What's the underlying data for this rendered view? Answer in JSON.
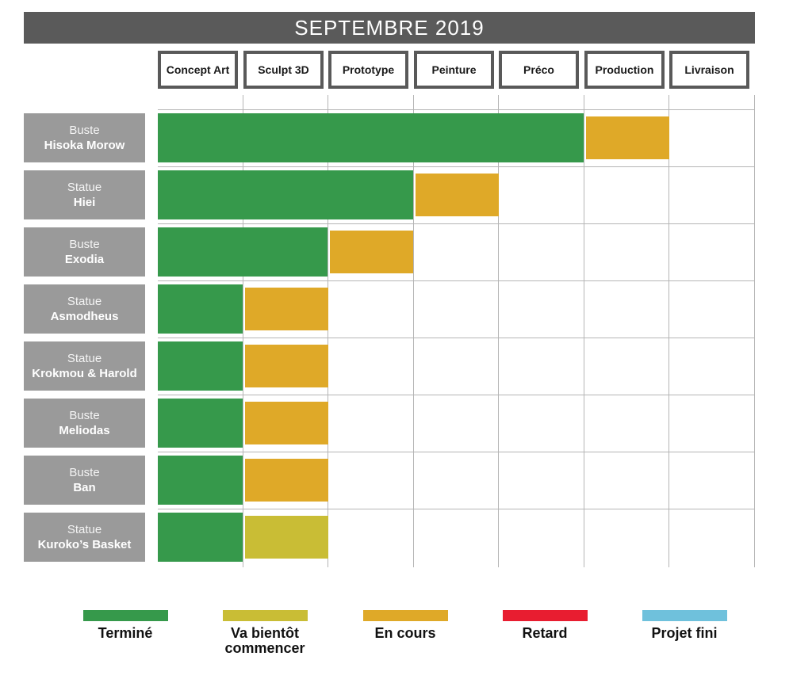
{
  "title": "SEPTEMBRE 2019",
  "columns": [
    "Concept Art",
    "Sculpt 3D",
    "Prototype",
    "Peinture",
    "Préco",
    "Production",
    "Livraison"
  ],
  "colors": {
    "done": "#36994b",
    "soon": "#c9bd35",
    "in_progress": "#dfa928",
    "late": "#e81d30",
    "finished": "#6fc1dc",
    "header_dark": "#595959",
    "label_gray": "#9a9a9a",
    "grid": "#b5b5b5"
  },
  "rows": [
    {
      "line1": "Buste",
      "line2": "Hisoka Morow",
      "segments": [
        {
          "status": "done",
          "start": 0,
          "span": 5
        },
        {
          "status": "in_progress",
          "start": 5,
          "span": 1
        }
      ]
    },
    {
      "line1": "Statue",
      "line2": "Hiei",
      "segments": [
        {
          "status": "done",
          "start": 0,
          "span": 3
        },
        {
          "status": "in_progress",
          "start": 3,
          "span": 1
        }
      ]
    },
    {
      "line1": "Buste",
      "line2": "Exodia",
      "segments": [
        {
          "status": "done",
          "start": 0,
          "span": 2
        },
        {
          "status": "in_progress",
          "start": 2,
          "span": 1
        }
      ]
    },
    {
      "line1": "Statue",
      "line2": "Asmodheus",
      "segments": [
        {
          "status": "done",
          "start": 0,
          "span": 1
        },
        {
          "status": "in_progress",
          "start": 1,
          "span": 1
        }
      ]
    },
    {
      "line1": "Statue",
      "line2": "Krokmou & Harold",
      "segments": [
        {
          "status": "done",
          "start": 0,
          "span": 1
        },
        {
          "status": "in_progress",
          "start": 1,
          "span": 1
        }
      ]
    },
    {
      "line1": "Buste",
      "line2": "Meliodas",
      "segments": [
        {
          "status": "done",
          "start": 0,
          "span": 1
        },
        {
          "status": "in_progress",
          "start": 1,
          "span": 1
        }
      ]
    },
    {
      "line1": "Buste",
      "line2": "Ban",
      "segments": [
        {
          "status": "done",
          "start": 0,
          "span": 1
        },
        {
          "status": "in_progress",
          "start": 1,
          "span": 1
        }
      ]
    },
    {
      "line1": "Statue",
      "line2": "Kuroko’s Basket",
      "segments": [
        {
          "status": "done",
          "start": 0,
          "span": 1
        },
        {
          "status": "soon",
          "start": 1,
          "span": 1
        }
      ]
    }
  ],
  "legend": [
    {
      "label": "Terminé",
      "status": "done"
    },
    {
      "label": "Va bientôt commencer",
      "status": "soon"
    },
    {
      "label": "En cours",
      "status": "in_progress"
    },
    {
      "label": "Retard",
      "status": "late"
    },
    {
      "label": "Projet fini",
      "status": "finished"
    }
  ],
  "chart_data": {
    "type": "bar",
    "subtype": "gantt",
    "orientation": "horizontal",
    "title": "SEPTEMBRE 2019",
    "stages": [
      "Concept Art",
      "Sculpt 3D",
      "Prototype",
      "Peinture",
      "Préco",
      "Production",
      "Livraison"
    ],
    "categories": [
      "Buste Hisoka Morow",
      "Statue Hiei",
      "Buste Exodia",
      "Statue Asmodheus",
      "Statue Krokmou & Harold",
      "Buste Meliodas",
      "Buste Ban",
      "Statue Kuroko’s Basket"
    ],
    "series": [
      {
        "name": "Terminé",
        "values": [
          5,
          3,
          2,
          1,
          1,
          1,
          1,
          1
        ]
      },
      {
        "name": "En cours",
        "values": [
          1,
          1,
          1,
          1,
          1,
          1,
          1,
          0
        ]
      },
      {
        "name": "Va bientôt commencer",
        "values": [
          0,
          0,
          0,
          0,
          0,
          0,
          0,
          1
        ]
      },
      {
        "name": "Retard",
        "values": [
          0,
          0,
          0,
          0,
          0,
          0,
          0,
          0
        ]
      },
      {
        "name": "Projet fini",
        "values": [
          0,
          0,
          0,
          0,
          0,
          0,
          0,
          0
        ]
      }
    ],
    "x_axis": {
      "unit": "stage",
      "range": [
        0,
        7
      ],
      "grid": true
    },
    "legend_position": "bottom"
  }
}
